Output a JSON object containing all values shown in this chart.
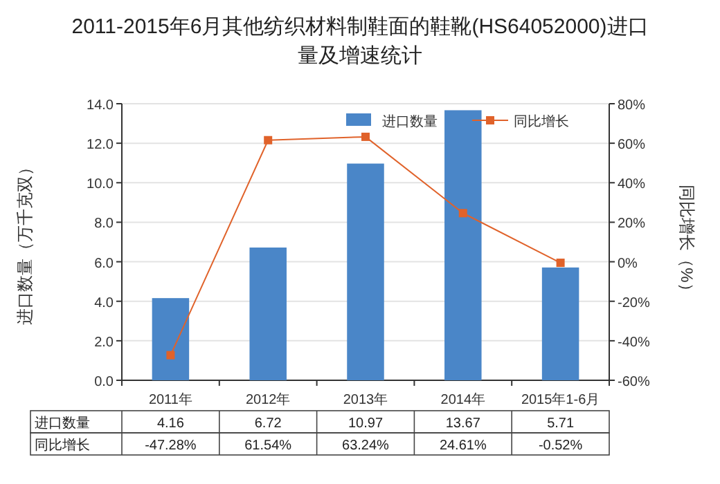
{
  "chart_data": {
    "type": "bar",
    "title": "2011-2015年6月其他纺织材料制鞋面的鞋靴(HS64052000)进口量及增速统计",
    "categories": [
      "2011年",
      "2012年",
      "2013年",
      "2014年",
      "2015年1-6月"
    ],
    "ylabel": "进口数量（万千克双）",
    "y2label": "同比增长（%）",
    "ylim": [
      0,
      14
    ],
    "yticks": [
      {
        "value": 0,
        "label": "0.0"
      },
      {
        "value": 2,
        "label": "2.0"
      },
      {
        "value": 4,
        "label": "4.0"
      },
      {
        "value": 6,
        "label": "6.0"
      },
      {
        "value": 8,
        "label": "8.0"
      },
      {
        "value": 10,
        "label": "10.0"
      },
      {
        "value": 12,
        "label": "12.0"
      },
      {
        "value": 14,
        "label": "14.0"
      }
    ],
    "y2lim": [
      -60,
      80
    ],
    "y2ticks": [
      {
        "value": -60,
        "label": "-60%"
      },
      {
        "value": -40,
        "label": "-40%"
      },
      {
        "value": -20,
        "label": "-20%"
      },
      {
        "value": 0,
        "label": "0%"
      },
      {
        "value": 20,
        "label": "20%"
      },
      {
        "value": 40,
        "label": "40%"
      },
      {
        "value": 60,
        "label": "60%"
      },
      {
        "value": 80,
        "label": "80%"
      }
    ],
    "series": [
      {
        "name": "进口数量",
        "color": "#4a86c8",
        "values": [
          4.16,
          6.72,
          10.97,
          13.67,
          5.71
        ],
        "value_labels": [
          "4.16",
          "6.72",
          "10.97",
          "13.67",
          "5.71"
        ]
      },
      {
        "name": "同比增长",
        "type": "line",
        "axis": "y2",
        "color": "#e0622a",
        "values": [
          -47.28,
          61.54,
          63.24,
          24.61,
          -0.52
        ],
        "value_labels": [
          "-47.28%",
          "61.54%",
          "63.24%",
          "24.61%",
          "-0.52%"
        ]
      }
    ],
    "marker": "square",
    "grid": "y",
    "legend": "top"
  }
}
